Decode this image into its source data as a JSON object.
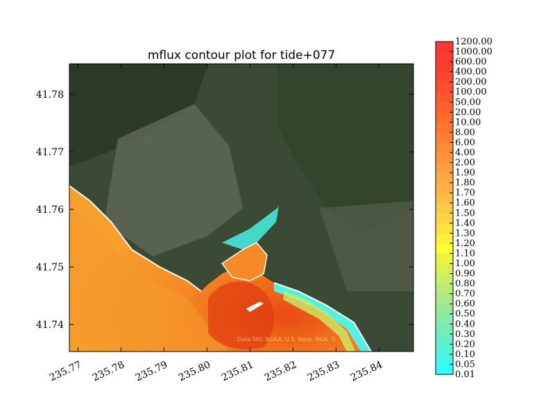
{
  "chart_data": {
    "type": "heatmap",
    "title": "mflux contour plot for tide+077",
    "xlabel": "",
    "ylabel": "",
    "xlim": [
      235.768,
      235.848
    ],
    "ylim": [
      41.7353,
      41.7853
    ],
    "xticks": [
      "235.77",
      "235.78",
      "235.79",
      "235.80",
      "235.81",
      "235.82",
      "235.83",
      "235.84"
    ],
    "xtick_values": [
      235.77,
      235.78,
      235.79,
      235.8,
      235.81,
      235.82,
      235.83,
      235.84
    ],
    "yticks": [
      "41.74",
      "41.75",
      "41.76",
      "41.77",
      "41.78"
    ],
    "ytick_values": [
      41.74,
      41.75,
      41.76,
      41.77,
      41.78
    ],
    "attribution": "Data SIO, NOAA, U.S. Navy, NGA, G",
    "colorbar": {
      "levels": [
        "0.01",
        "0.05",
        "0.10",
        "0.20",
        "0.30",
        "0.40",
        "0.50",
        "0.60",
        "0.70",
        "0.80",
        "0.90",
        "1.00",
        "1.10",
        "1.20",
        "1.30",
        "1.40",
        "1.50",
        "1.60",
        "1.70",
        "1.80",
        "1.90",
        "2.00",
        "4.00",
        "6.00",
        "8.00",
        "10.00",
        "20.00",
        "50.00",
        "100.00",
        "200.00",
        "400.00",
        "600.00",
        "1000.00",
        "1200.00"
      ],
      "colors": [
        "#33ffff",
        "#44f8e8",
        "#55f3d8",
        "#66eec8",
        "#77ecb8",
        "#88eaa8",
        "#99e898",
        "#aae888",
        "#bbea78",
        "#ccee66",
        "#ddf050",
        "#eef440",
        "#ffff33",
        "#ffee3a",
        "#ffe140",
        "#ffd444",
        "#ffc846",
        "#ffbd46",
        "#ffb244",
        "#ffa842",
        "#ff9e40",
        "#ff943c",
        "#ff8a38",
        "#ff8034",
        "#ff7630",
        "#ff6c2e",
        "#ff622c",
        "#ff582c",
        "#ff4e2c",
        "#ff462e",
        "#ff3e30",
        "#ff3a32",
        "#ff3636"
      ]
    }
  }
}
